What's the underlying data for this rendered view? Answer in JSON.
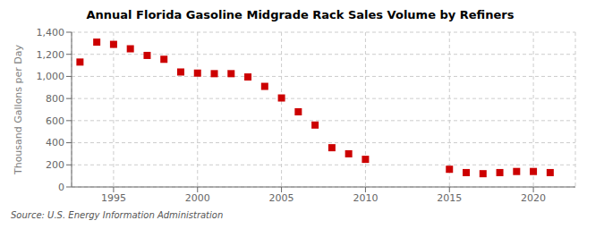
{
  "chart_data": {
    "type": "scatter",
    "title": "Annual Florida Gasoline Midgrade Rack Sales Volume by Refiners",
    "ylabel": "Thousand Gallons per Day",
    "source": "Source: U.S. Energy Information Administration",
    "x": [
      1993,
      1994,
      1995,
      1996,
      1997,
      1998,
      1999,
      2000,
      2001,
      2002,
      2003,
      2004,
      2005,
      2006,
      2007,
      2008,
      2009,
      2010,
      2015,
      2016,
      2017,
      2018,
      2019,
      2020,
      2021
    ],
    "values": [
      1130,
      1310,
      1290,
      1250,
      1190,
      1155,
      1040,
      1030,
      1025,
      1025,
      995,
      910,
      805,
      680,
      560,
      355,
      300,
      250,
      160,
      130,
      120,
      130,
      140,
      140,
      130
    ],
    "color": "#cc0000",
    "marker": "square",
    "grid": true,
    "xlim": [
      1992.5,
      2022.5
    ],
    "xticks": [
      1995,
      2000,
      2005,
      2010,
      2015,
      2020
    ],
    "ylim": [
      0,
      1400
    ],
    "yticks": [
      0,
      200,
      400,
      600,
      800,
      {
        "value": 1000,
        "label": "1,000"
      },
      {
        "value": 1200,
        "label": "1,200"
      },
      {
        "value": 1400,
        "label": "1,400"
      }
    ]
  }
}
